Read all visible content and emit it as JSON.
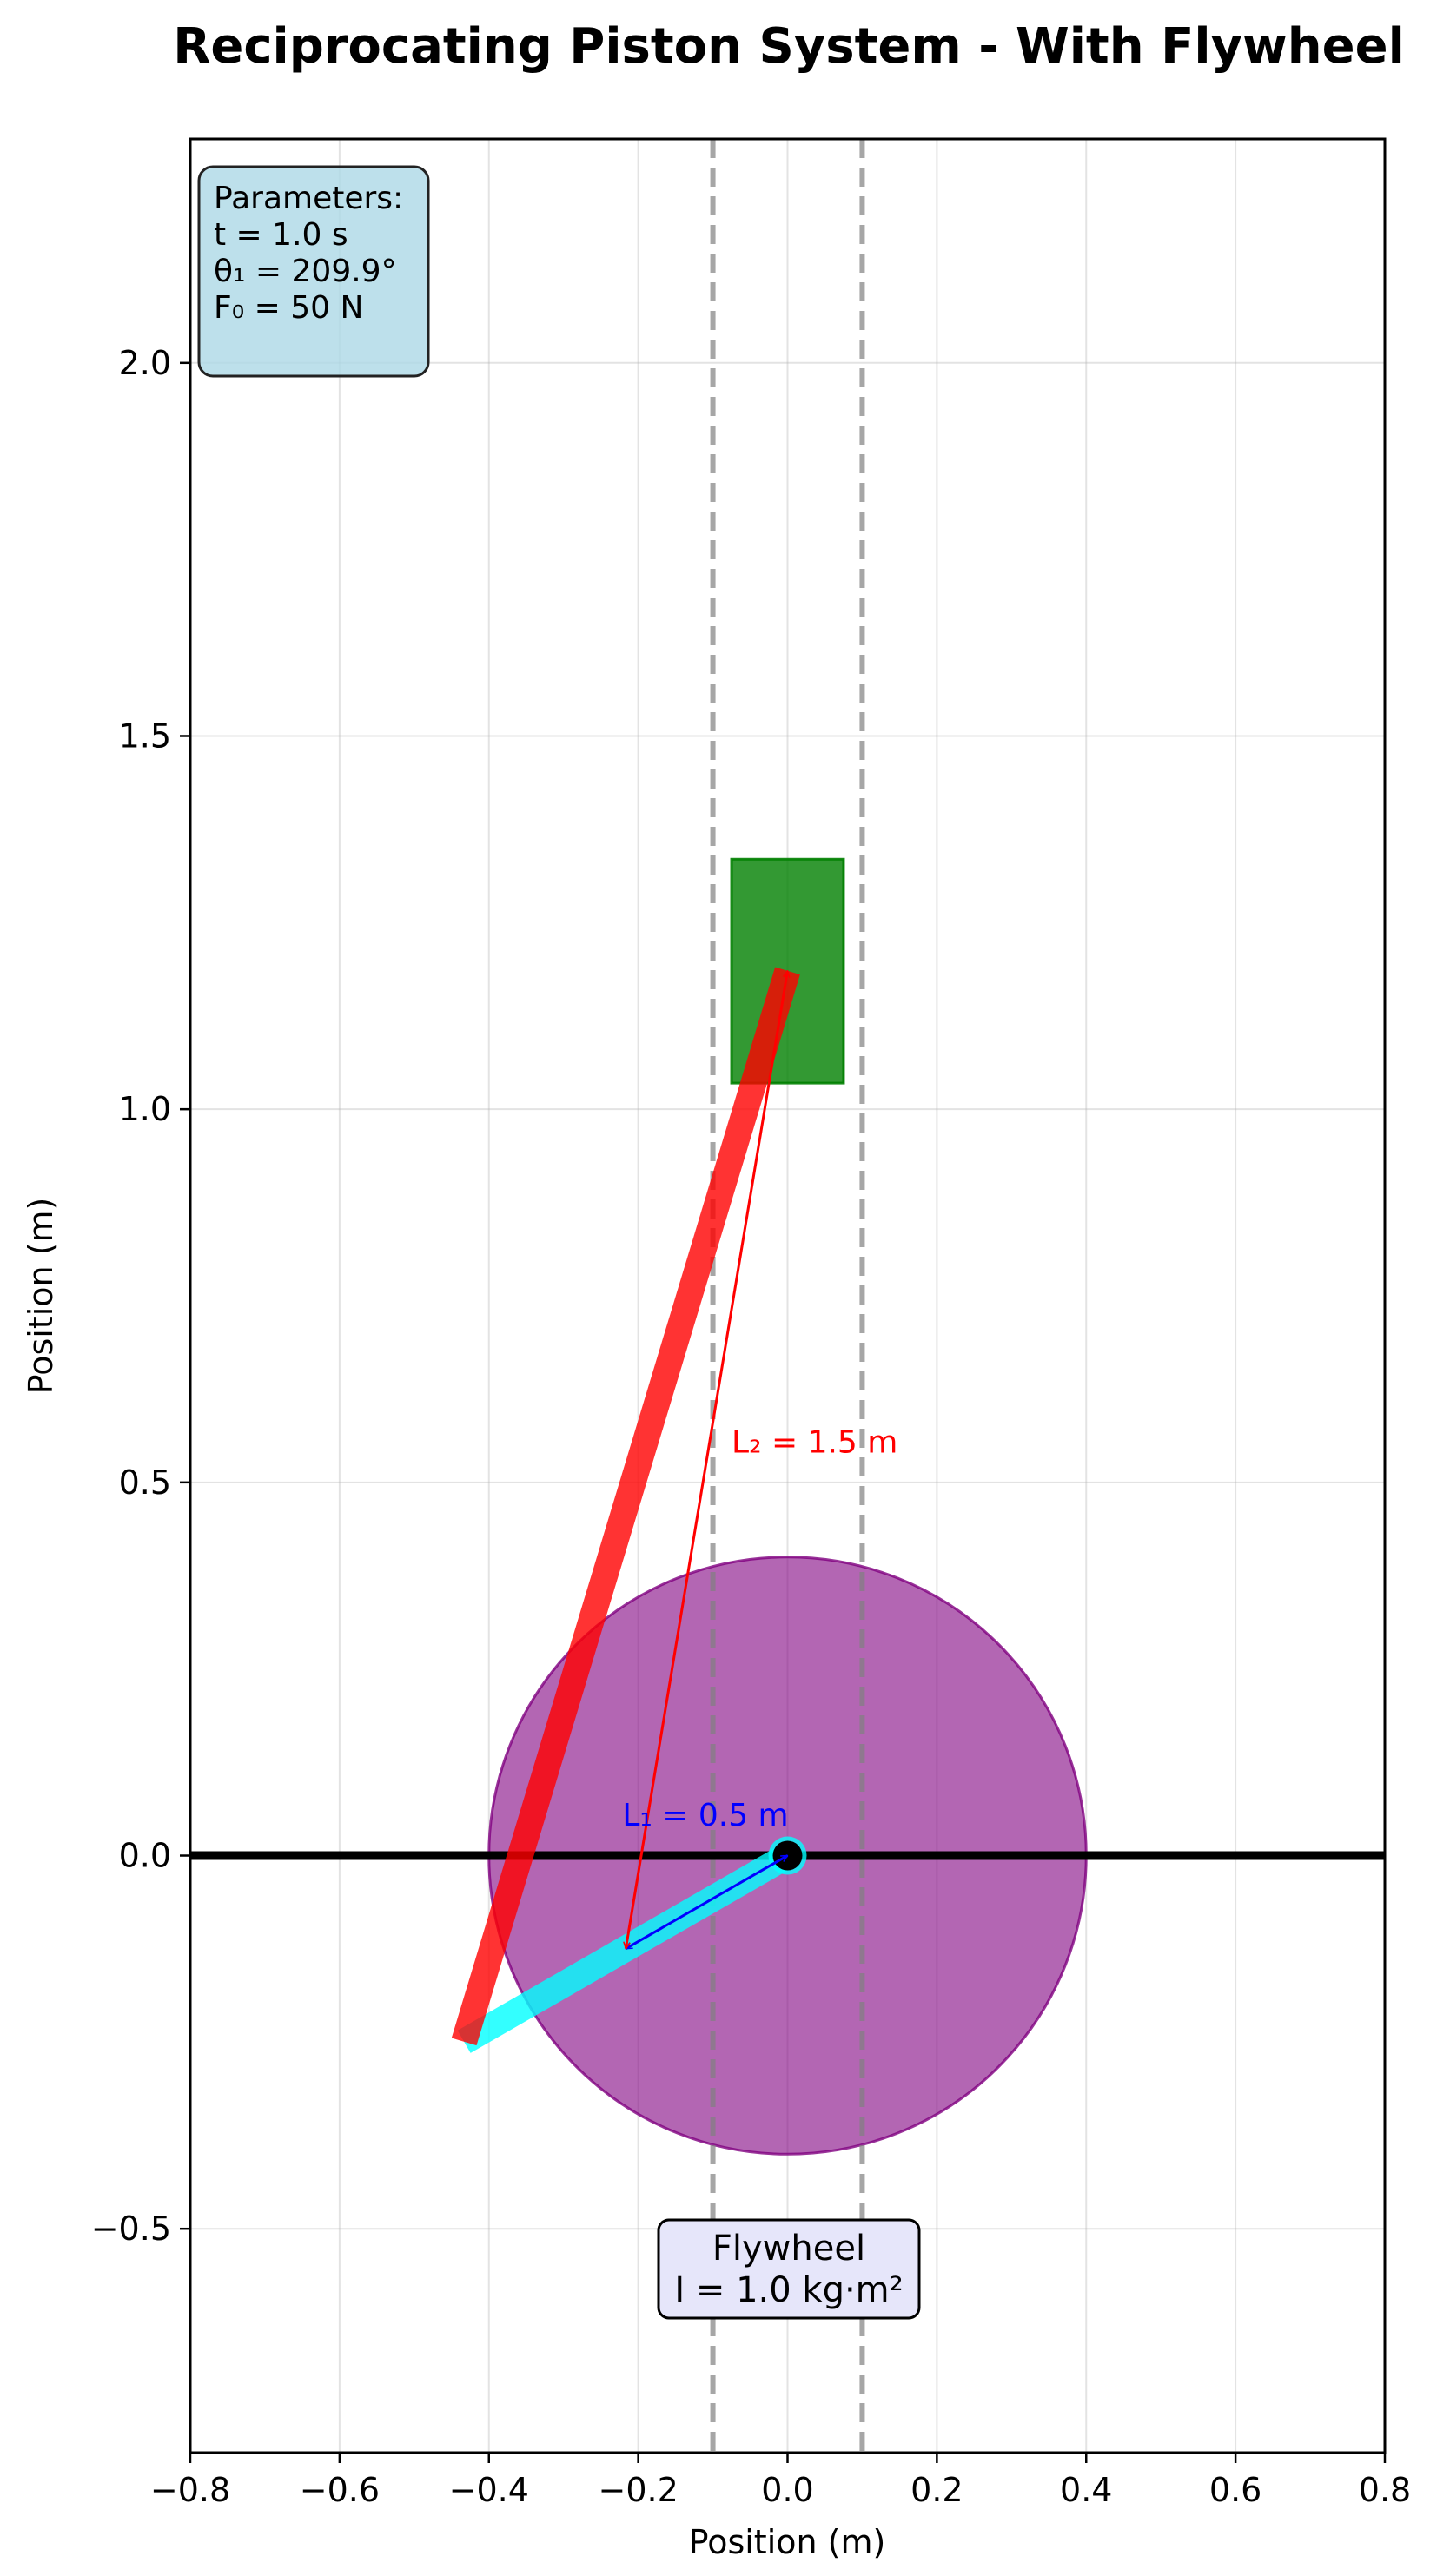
{
  "title": "Reciprocating Piston System - With Flywheel",
  "axes": {
    "xlabel": "Position (m)",
    "ylabel": "Position (m)",
    "xlim": [
      -0.8,
      0.8
    ],
    "ylim": [
      -0.8,
      2.3
    ],
    "xticks": [
      -0.8,
      -0.6,
      -0.4,
      -0.2,
      0.0,
      0.2,
      0.4,
      0.6,
      0.8
    ],
    "xtick_labels": [
      "−0.8",
      "−0.6",
      "−0.4",
      "−0.2",
      "0.0",
      "0.2",
      "0.4",
      "0.6",
      "0.8"
    ],
    "yticks": [
      -0.5,
      0.0,
      0.5,
      1.0,
      1.5,
      2.0
    ],
    "ytick_labels": [
      "−0.5",
      "0.0",
      "0.5",
      "1.0",
      "1.5",
      "2.0"
    ],
    "grid": true
  },
  "parameters": {
    "heading": "Parameters:",
    "time": "t = 1.0 s",
    "angle": "θ₁ = 209.9°",
    "force": "F₀ = 50 N"
  },
  "flywheel": {
    "center": [
      0.0,
      0.0
    ],
    "radius": 0.4,
    "color": "#800080",
    "label_line1": "Flywheel",
    "label_line2": "I = 1.0 kg·m²",
    "label_position": [
      0.0,
      -0.55
    ]
  },
  "crank": {
    "start": [
      0.0,
      0.0
    ],
    "end": [
      -0.4333,
      -0.2494
    ],
    "color": "#00ffff",
    "label": "L₁ = 0.5 m",
    "label_position": [
      -0.11,
      0.04
    ]
  },
  "connecting_rod": {
    "start": [
      -0.4333,
      -0.2494
    ],
    "end": [
      0.0,
      1.1854
    ],
    "color": "#ff0000",
    "label": "L₂ = 1.5 m",
    "label_position": [
      -0.075,
      0.54
    ]
  },
  "piston": {
    "x_center": 0.0,
    "y_bottom": 1.035,
    "y_top": 1.335,
    "width": 0.15,
    "color": "#008000"
  },
  "cylinder_walls": {
    "x": [
      -0.1,
      0.1
    ],
    "color": "#808080"
  },
  "ground_line": {
    "y": 0.0,
    "color": "#000000"
  },
  "pivot": {
    "position": [
      0.0,
      0.0
    ],
    "color": "#000000"
  },
  "colors": {
    "param_box_fill": "#add8e6",
    "flywheel_box_fill": "#e6e6fa",
    "grid": "#b0b0b0",
    "crank_arrow": "#0000ff",
    "rod_arrow": "#ff0000"
  }
}
